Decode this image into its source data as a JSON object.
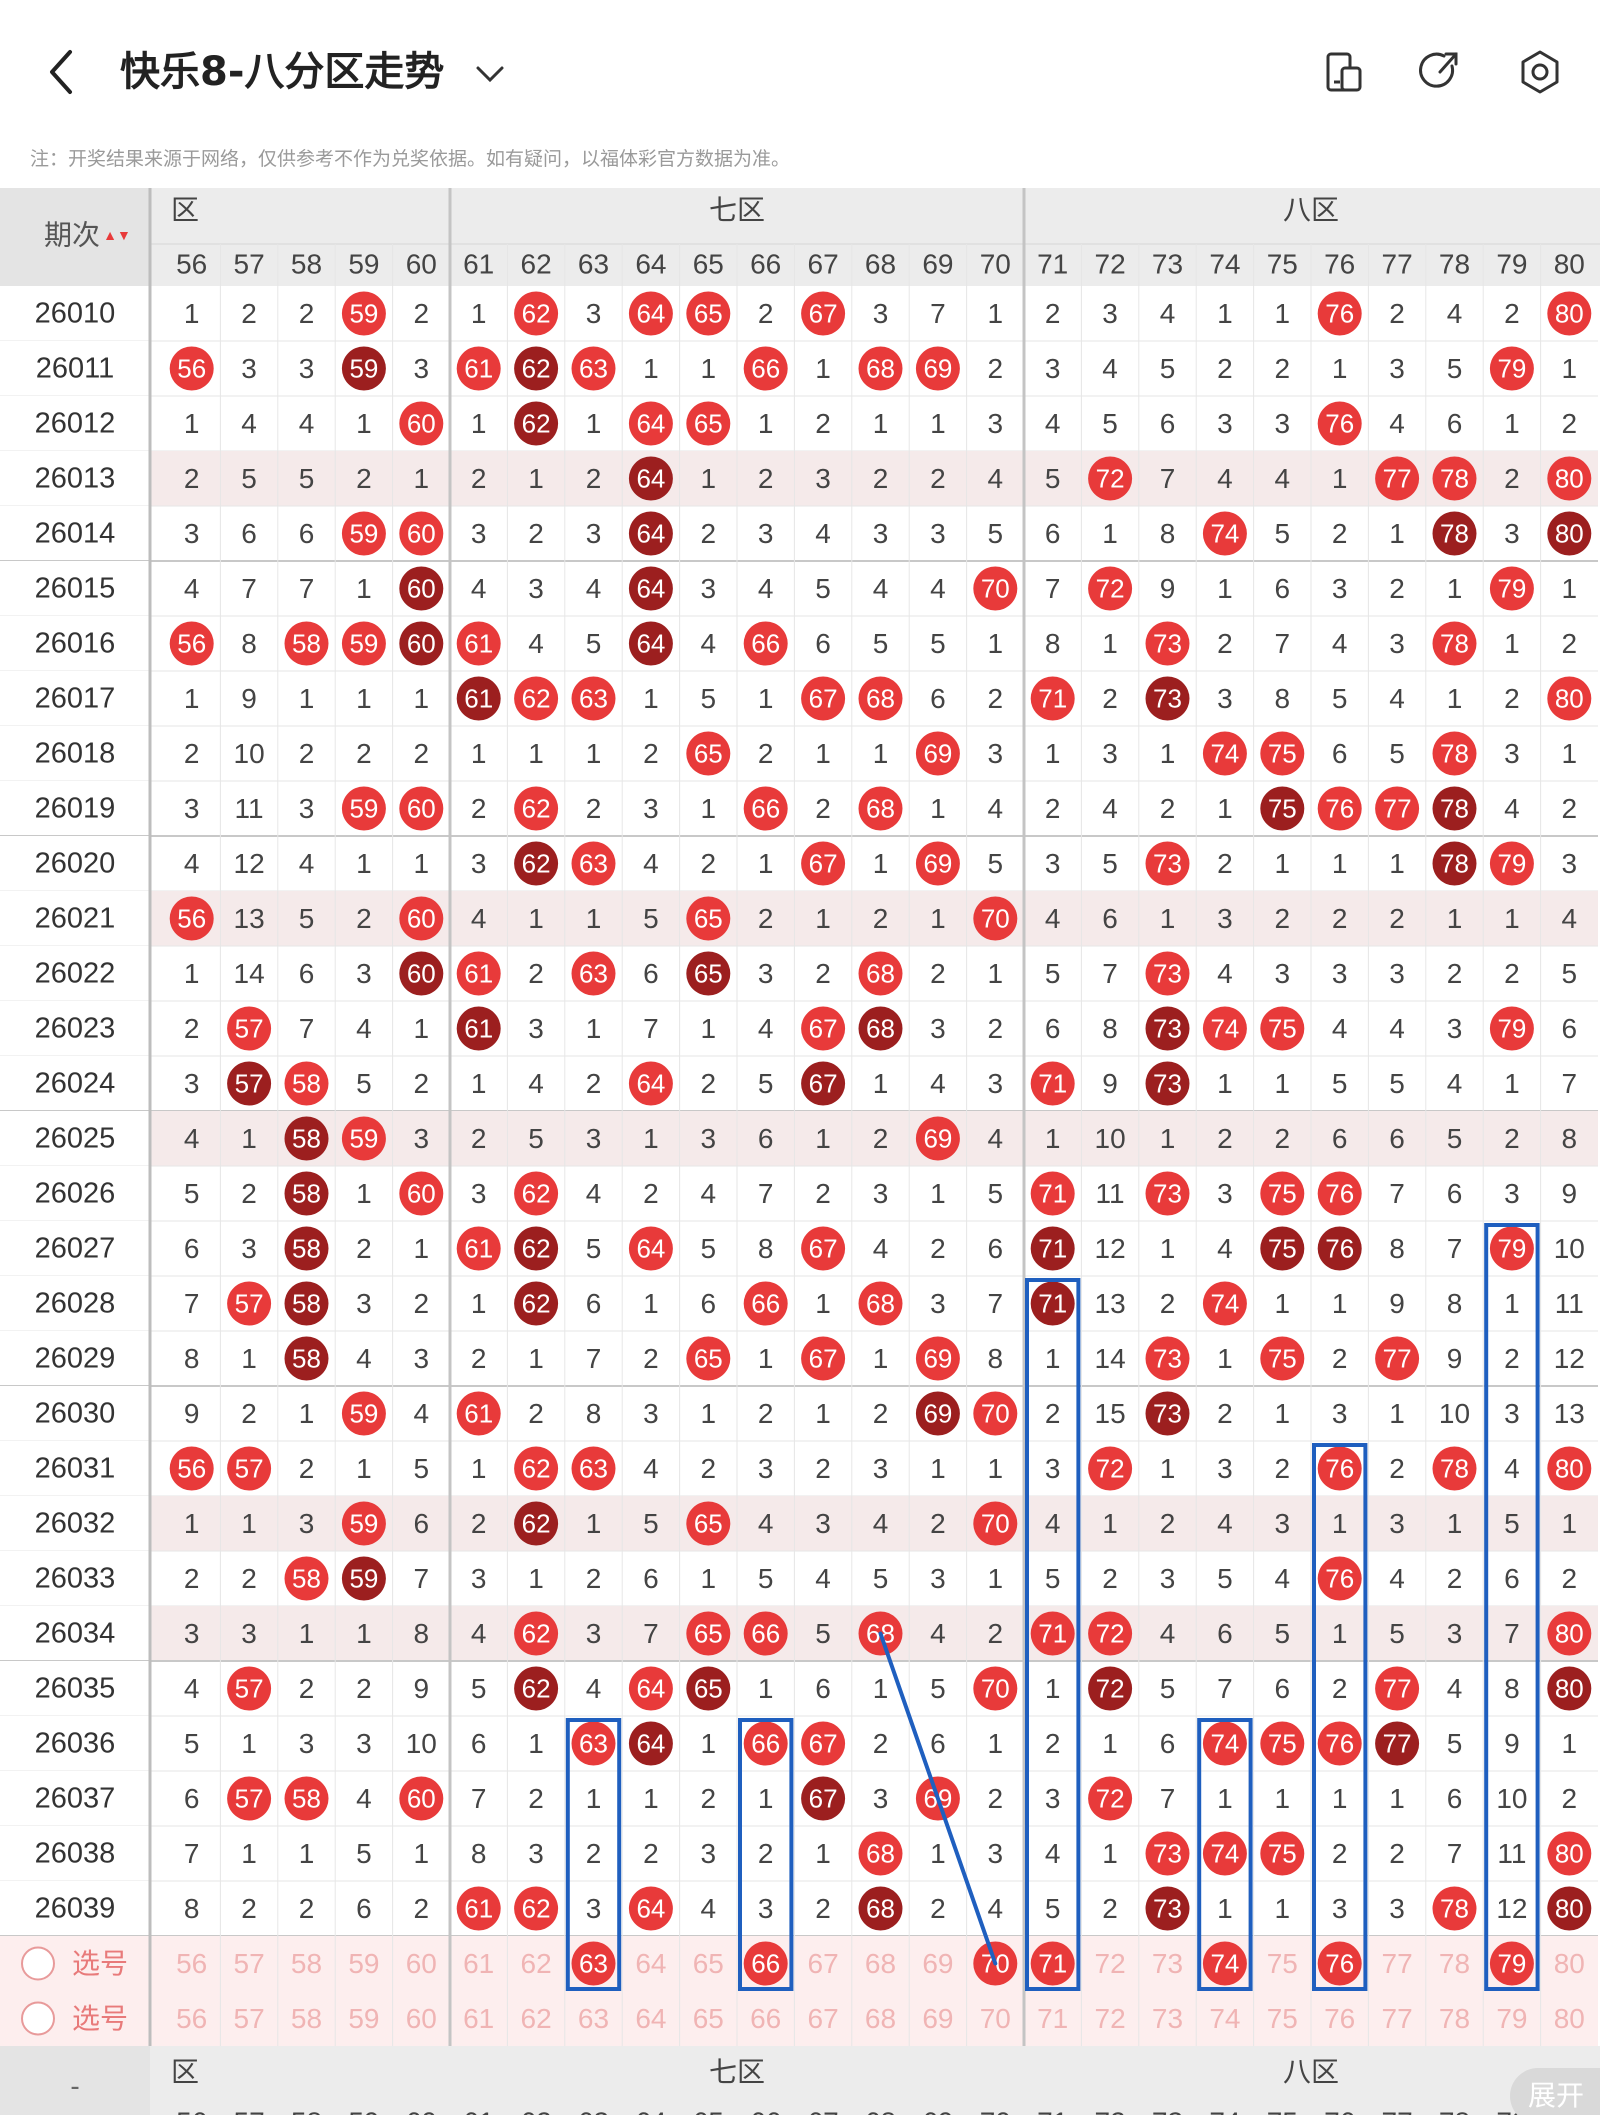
{
  "header": {
    "title": "快乐8-八分区走势"
  },
  "notice": "注：开奖结果来源于网络，仅供参考不作为兑奖依据。如有疑问，以福体彩官方数据为准。",
  "table": {
    "period_header": "期次",
    "zones": [
      {
        "label": "六区",
        "partial": true,
        "shown_label": "区"
      },
      {
        "label": "七区"
      },
      {
        "label": "八区"
      }
    ],
    "columns": [
      "56",
      "57",
      "58",
      "59",
      "60",
      "61",
      "62",
      "63",
      "64",
      "65",
      "66",
      "67",
      "68",
      "69",
      "70",
      "71",
      "72",
      "73",
      "74",
      "75",
      "76",
      "77",
      "78",
      "79",
      "80"
    ],
    "rows": [
      {
        "period": "26010",
        "cells": [
          "1",
          "2",
          "2",
          "59",
          "2",
          "1",
          "62",
          "3",
          "64",
          "65",
          "2",
          "67",
          "3",
          "7",
          "1",
          "2",
          "3",
          "4",
          "1",
          "1",
          "76",
          "2",
          "4",
          "2",
          "80"
        ]
      },
      {
        "period": "26011",
        "cells": [
          "56",
          "3",
          "3",
          "59",
          "3",
          "61",
          "62",
          "63",
          "1",
          "1",
          "66",
          "1",
          "68",
          "69",
          "2",
          "3",
          "4",
          "5",
          "2",
          "2",
          "1",
          "3",
          "5",
          "79",
          "1"
        ]
      },
      {
        "period": "26012",
        "cells": [
          "1",
          "4",
          "4",
          "1",
          "60",
          "1",
          "62",
          "1",
          "64",
          "65",
          "1",
          "2",
          "1",
          "1",
          "3",
          "4",
          "5",
          "6",
          "3",
          "3",
          "76",
          "4",
          "6",
          "1",
          "2"
        ]
      },
      {
        "period": "26013",
        "cells": [
          "2",
          "5",
          "5",
          "2",
          "1",
          "2",
          "1",
          "2",
          "64",
          "1",
          "2",
          "3",
          "2",
          "2",
          "4",
          "5",
          "72",
          "7",
          "4",
          "4",
          "1",
          "77",
          "78",
          "2",
          "80"
        ]
      },
      {
        "period": "26014",
        "cells": [
          "3",
          "6",
          "6",
          "59",
          "60",
          "3",
          "2",
          "3",
          "64",
          "2",
          "3",
          "4",
          "3",
          "3",
          "5",
          "6",
          "1",
          "8",
          "74",
          "5",
          "2",
          "1",
          "78",
          "3",
          "80"
        ]
      },
      {
        "period": "26015",
        "cells": [
          "4",
          "7",
          "7",
          "1",
          "60",
          "4",
          "3",
          "4",
          "64",
          "3",
          "4",
          "5",
          "4",
          "4",
          "70",
          "7",
          "72",
          "9",
          "1",
          "6",
          "3",
          "2",
          "1",
          "79",
          "1"
        ]
      },
      {
        "period": "26016",
        "cells": [
          "56",
          "8",
          "58",
          "59",
          "60",
          "61",
          "4",
          "5",
          "64",
          "4",
          "66",
          "6",
          "5",
          "5",
          "1",
          "8",
          "1",
          "73",
          "2",
          "7",
          "4",
          "3",
          "78",
          "1",
          "2"
        ]
      },
      {
        "period": "26017",
        "cells": [
          "1",
          "9",
          "1",
          "1",
          "1",
          "61",
          "62",
          "63",
          "1",
          "5",
          "1",
          "67",
          "68",
          "6",
          "2",
          "71",
          "2",
          "73",
          "3",
          "8",
          "5",
          "4",
          "1",
          "2",
          "80"
        ]
      },
      {
        "period": "26018",
        "cells": [
          "2",
          "10",
          "2",
          "2",
          "2",
          "1",
          "1",
          "1",
          "2",
          "65",
          "2",
          "1",
          "1",
          "69",
          "3",
          "1",
          "3",
          "1",
          "74",
          "75",
          "6",
          "5",
          "78",
          "3",
          "1"
        ]
      },
      {
        "period": "26019",
        "cells": [
          "3",
          "11",
          "3",
          "59",
          "60",
          "2",
          "62",
          "2",
          "3",
          "1",
          "66",
          "2",
          "68",
          "1",
          "4",
          "2",
          "4",
          "2",
          "1",
          "75",
          "76",
          "77",
          "78",
          "4",
          "2"
        ]
      },
      {
        "period": "26020",
        "cells": [
          "4",
          "12",
          "4",
          "1",
          "1",
          "3",
          "62",
          "63",
          "4",
          "2",
          "1",
          "67",
          "1",
          "69",
          "5",
          "3",
          "5",
          "73",
          "2",
          "1",
          "1",
          "1",
          "78",
          "79",
          "3"
        ]
      },
      {
        "period": "26021",
        "cells": [
          "56",
          "13",
          "5",
          "2",
          "60",
          "4",
          "1",
          "1",
          "5",
          "65",
          "2",
          "1",
          "2",
          "1",
          "70",
          "4",
          "6",
          "1",
          "3",
          "2",
          "2",
          "2",
          "1",
          "1",
          "4"
        ]
      },
      {
        "period": "26022",
        "cells": [
          "1",
          "14",
          "6",
          "3",
          "60",
          "61",
          "2",
          "63",
          "6",
          "65",
          "3",
          "2",
          "68",
          "2",
          "1",
          "5",
          "7",
          "73",
          "4",
          "3",
          "3",
          "3",
          "2",
          "2",
          "5"
        ]
      },
      {
        "period": "26023",
        "cells": [
          "2",
          "57",
          "7",
          "4",
          "1",
          "61",
          "3",
          "1",
          "7",
          "1",
          "4",
          "67",
          "68",
          "3",
          "2",
          "6",
          "8",
          "73",
          "74",
          "75",
          "4",
          "4",
          "3",
          "79",
          "6"
        ]
      },
      {
        "period": "26024",
        "cells": [
          "3",
          "57",
          "58",
          "5",
          "2",
          "1",
          "4",
          "2",
          "64",
          "2",
          "5",
          "67",
          "1",
          "4",
          "3",
          "71",
          "9",
          "73",
          "1",
          "1",
          "5",
          "5",
          "4",
          "1",
          "7"
        ]
      },
      {
        "period": "26025",
        "cells": [
          "4",
          "1",
          "58",
          "59",
          "3",
          "2",
          "5",
          "3",
          "1",
          "3",
          "6",
          "1",
          "2",
          "69",
          "4",
          "1",
          "10",
          "1",
          "2",
          "2",
          "6",
          "6",
          "5",
          "2",
          "8"
        ]
      },
      {
        "period": "26026",
        "cells": [
          "5",
          "2",
          "58",
          "1",
          "60",
          "3",
          "62",
          "4",
          "2",
          "4",
          "7",
          "2",
          "3",
          "1",
          "5",
          "71",
          "11",
          "73",
          "3",
          "75",
          "76",
          "7",
          "6",
          "3",
          "9"
        ]
      },
      {
        "period": "26027",
        "cells": [
          "6",
          "3",
          "58",
          "2",
          "1",
          "61",
          "62",
          "5",
          "64",
          "5",
          "8",
          "67",
          "4",
          "2",
          "6",
          "71",
          "12",
          "1",
          "4",
          "75",
          "76",
          "8",
          "7",
          "79",
          "10"
        ]
      },
      {
        "period": "26028",
        "cells": [
          "7",
          "57",
          "58",
          "3",
          "2",
          "1",
          "62",
          "6",
          "1",
          "6",
          "66",
          "1",
          "68",
          "3",
          "7",
          "71",
          "13",
          "2",
          "74",
          "1",
          "1",
          "9",
          "8",
          "1",
          "11"
        ]
      },
      {
        "period": "26029",
        "cells": [
          "8",
          "1",
          "58",
          "4",
          "3",
          "2",
          "1",
          "7",
          "2",
          "65",
          "1",
          "67",
          "1",
          "69",
          "8",
          "1",
          "14",
          "73",
          "1",
          "75",
          "2",
          "77",
          "9",
          "2",
          "12"
        ]
      },
      {
        "period": "26030",
        "cells": [
          "9",
          "2",
          "1",
          "59",
          "4",
          "61",
          "2",
          "8",
          "3",
          "1",
          "2",
          "1",
          "2",
          "69",
          "70",
          "2",
          "15",
          "73",
          "2",
          "1",
          "3",
          "1",
          "10",
          "3",
          "13"
        ]
      },
      {
        "period": "26031",
        "cells": [
          "56",
          "57",
          "2",
          "1",
          "5",
          "1",
          "62",
          "63",
          "4",
          "2",
          "3",
          "2",
          "3",
          "1",
          "1",
          "3",
          "72",
          "1",
          "3",
          "2",
          "76",
          "2",
          "78",
          "4",
          "80"
        ]
      },
      {
        "period": "26032",
        "cells": [
          "1",
          "1",
          "3",
          "59",
          "6",
          "2",
          "62",
          "1",
          "5",
          "65",
          "4",
          "3",
          "4",
          "2",
          "70",
          "4",
          "1",
          "2",
          "4",
          "3",
          "1",
          "3",
          "1",
          "5",
          "1"
        ]
      },
      {
        "period": "26033",
        "cells": [
          "2",
          "2",
          "58",
          "59",
          "7",
          "3",
          "1",
          "2",
          "6",
          "1",
          "5",
          "4",
          "5",
          "3",
          "1",
          "5",
          "2",
          "3",
          "5",
          "4",
          "76",
          "4",
          "2",
          "6",
          "2"
        ]
      },
      {
        "period": "26034",
        "cells": [
          "3",
          "3",
          "1",
          "1",
          "8",
          "4",
          "62",
          "3",
          "7",
          "65",
          "66",
          "5",
          "68",
          "4",
          "2",
          "71",
          "72",
          "4",
          "6",
          "5",
          "1",
          "5",
          "3",
          "7",
          "80"
        ]
      },
      {
        "period": "26035",
        "cells": [
          "4",
          "57",
          "2",
          "2",
          "9",
          "5",
          "62",
          "4",
          "64",
          "65",
          "1",
          "6",
          "1",
          "5",
          "70",
          "1",
          "72",
          "5",
          "7",
          "6",
          "2",
          "77",
          "4",
          "8",
          "80"
        ]
      },
      {
        "period": "26036",
        "cells": [
          "5",
          "1",
          "3",
          "3",
          "10",
          "6",
          "1",
          "63",
          "64",
          "1",
          "66",
          "67",
          "2",
          "6",
          "1",
          "2",
          "1",
          "6",
          "74",
          "75",
          "76",
          "77",
          "5",
          "9",
          "1"
        ]
      },
      {
        "period": "26037",
        "cells": [
          "6",
          "57",
          "58",
          "4",
          "60",
          "7",
          "2",
          "1",
          "1",
          "2",
          "1",
          "67",
          "3",
          "69",
          "2",
          "3",
          "72",
          "7",
          "1",
          "1",
          "1",
          "1",
          "6",
          "10",
          "2"
        ]
      },
      {
        "period": "26038",
        "cells": [
          "7",
          "1",
          "1",
          "5",
          "1",
          "8",
          "3",
          "2",
          "2",
          "3",
          "2",
          "1",
          "68",
          "1",
          "3",
          "4",
          "1",
          "73",
          "74",
          "75",
          "2",
          "2",
          "7",
          "11",
          "80"
        ]
      },
      {
        "period": "26039",
        "cells": [
          "8",
          "2",
          "2",
          "6",
          "2",
          "61",
          "62",
          "3",
          "64",
          "4",
          "3",
          "2",
          "68",
          "2",
          "4",
          "5",
          "2",
          "73",
          "1",
          "1",
          "3",
          "3",
          "78",
          "12",
          "80"
        ]
      }
    ],
    "select_rows": [
      {
        "label": "选号",
        "selected": [
          "63",
          "66",
          "70",
          "71",
          "74",
          "76",
          "79"
        ]
      },
      {
        "label": "选号",
        "selected": []
      }
    ],
    "sort_indicator": "▲▼"
  },
  "footer": {
    "period_placeholder": "-",
    "expand_label": "展开"
  },
  "colors": {
    "ball_red": "#e83a3a",
    "ball_dark": "#9c1f1f",
    "box_blue": "#1f5fbf",
    "grid": "#dddddd",
    "select_bg": "#fdeeee"
  }
}
